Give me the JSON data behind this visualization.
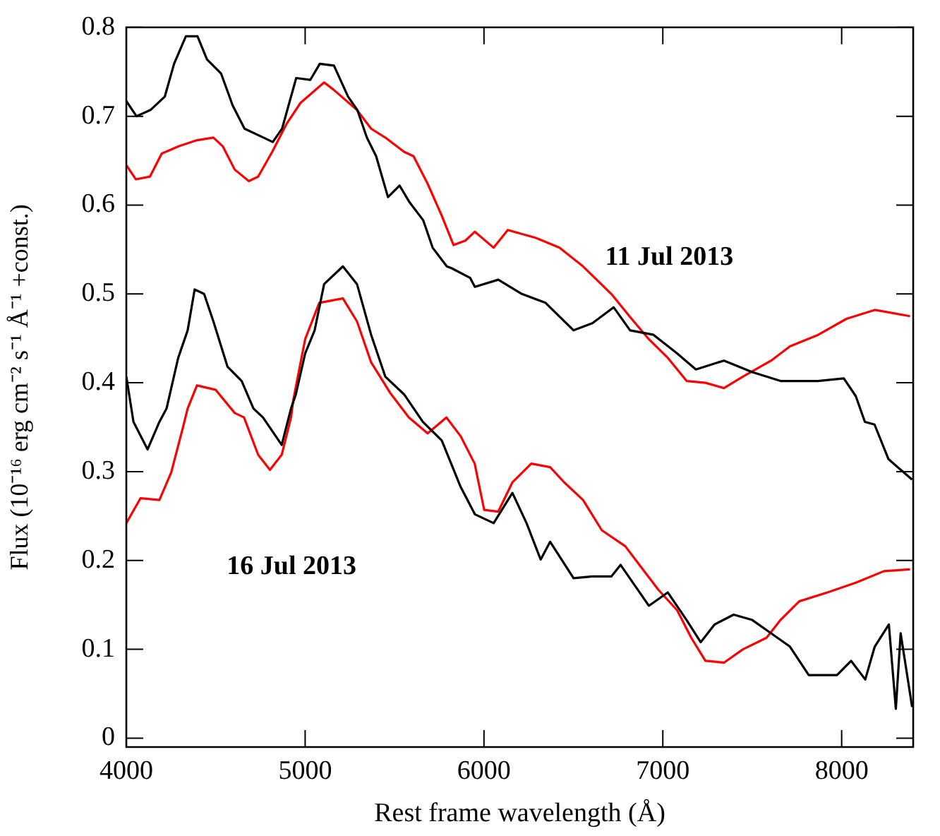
{
  "chart_data": {
    "type": "line",
    "xlabel": "Rest frame wavelength (Å)",
    "ylabel": "Flux (10⁻¹⁶ erg cm⁻² s⁻¹ Å⁻¹ +const.)",
    "xlim": [
      4000,
      8400
    ],
    "ylim": [
      -0.01,
      0.8
    ],
    "xticks": [
      4000,
      5000,
      6000,
      7000,
      8000
    ],
    "yticks": [
      0,
      0.1,
      0.2,
      0.3,
      0.4,
      0.5,
      0.6,
      0.7,
      0.8
    ],
    "grid": false,
    "legend": false,
    "marker": "none",
    "line_style": "solid",
    "series": [
      {
        "color": "#000000",
        "x": [
          4000,
          4057,
          4135,
          4215,
          4267,
          4333,
          4398,
          4451,
          4530,
          4595,
          4661,
          4767,
          4819,
          4871,
          4950,
          5029,
          5082,
          5161,
          5240,
          5292,
          5345,
          5397,
          5463,
          5528,
          5581,
          5660,
          5713,
          5792,
          5818,
          5923,
          5949,
          6080,
          6212,
          6344,
          6501,
          6606,
          6725,
          6817,
          6948,
          7080,
          7185,
          7342,
          7500,
          7658,
          7868,
          8012,
          8079,
          8130,
          8184,
          8262,
          8394
        ],
        "values": [
          0.717,
          0.7,
          0.707,
          0.722,
          0.759,
          0.79,
          0.79,
          0.764,
          0.748,
          0.712,
          0.686,
          0.676,
          0.671,
          0.686,
          0.743,
          0.741,
          0.759,
          0.757,
          0.722,
          0.707,
          0.676,
          0.655,
          0.609,
          0.622,
          0.604,
          0.583,
          0.552,
          0.531,
          0.529,
          0.518,
          0.508,
          0.516,
          0.5,
          0.49,
          0.459,
          0.467,
          0.485,
          0.459,
          0.454,
          0.433,
          0.415,
          0.425,
          0.412,
          0.402,
          0.402,
          0.405,
          0.385,
          0.356,
          0.353,
          0.314,
          0.291
        ]
      },
      {
        "color": "#ff0000",
        "x": [
          4000,
          4053,
          4132,
          4198,
          4290,
          4395,
          4487,
          4540,
          4606,
          4685,
          4737,
          4816,
          4895,
          4974,
          5106,
          5158,
          5290,
          5369,
          5448,
          5553,
          5606,
          5685,
          5764,
          5830,
          5896,
          5949,
          6054,
          6133,
          6291,
          6422,
          6554,
          6712,
          6817,
          6922,
          7028,
          7133,
          7238,
          7342,
          7448,
          7606,
          7711,
          7869,
          8027,
          8185,
          8382
        ],
        "values": [
          0.645,
          0.629,
          0.632,
          0.658,
          0.666,
          0.673,
          0.676,
          0.666,
          0.64,
          0.627,
          0.632,
          0.66,
          0.691,
          0.715,
          0.738,
          0.73,
          0.707,
          0.686,
          0.676,
          0.66,
          0.655,
          0.624,
          0.588,
          0.555,
          0.56,
          0.57,
          0.552,
          0.572,
          0.563,
          0.552,
          0.531,
          0.5,
          0.474,
          0.449,
          0.428,
          0.402,
          0.4,
          0.394,
          0.407,
          0.425,
          0.441,
          0.454,
          0.472,
          0.482,
          0.475
        ]
      },
      {
        "color": "#000000",
        "x": [
          4000,
          4040,
          4119,
          4185,
          4225,
          4290,
          4343,
          4382,
          4435,
          4487,
          4566,
          4645,
          4711,
          4764,
          4869,
          4921,
          4948,
          5000,
          5053,
          5106,
          5211,
          5290,
          5369,
          5448,
          5553,
          5658,
          5764,
          5869,
          5949,
          6054,
          6159,
          6238,
          6317,
          6370,
          6501,
          6606,
          6712,
          6764,
          6922,
          7028,
          7133,
          7212,
          7290,
          7396,
          7500,
          7606,
          7711,
          7816,
          7974,
          8053,
          8132,
          8185,
          8264,
          8303,
          8330,
          8394
        ],
        "values": [
          0.407,
          0.356,
          0.325,
          0.356,
          0.371,
          0.428,
          0.459,
          0.505,
          0.5,
          0.469,
          0.418,
          0.402,
          0.371,
          0.361,
          0.33,
          0.371,
          0.387,
          0.433,
          0.459,
          0.511,
          0.531,
          0.511,
          0.454,
          0.407,
          0.387,
          0.356,
          0.335,
          0.283,
          0.252,
          0.242,
          0.276,
          0.242,
          0.201,
          0.221,
          0.18,
          0.182,
          0.182,
          0.195,
          0.149,
          0.164,
          0.133,
          0.108,
          0.128,
          0.139,
          0.133,
          0.118,
          0.103,
          0.071,
          0.071,
          0.087,
          0.066,
          0.103,
          0.128,
          0.033,
          0.118,
          0.035
        ]
      },
      {
        "color": "#ff0000",
        "x": [
          4000,
          4079,
          4185,
          4251,
          4317,
          4343,
          4395,
          4500,
          4606,
          4658,
          4737,
          4803,
          4869,
          4921,
          4934,
          5000,
          5079,
          5211,
          5290,
          5369,
          5474,
          5580,
          5685,
          5790,
          5869,
          5948,
          6001,
          6080,
          6159,
          6264,
          6370,
          6448,
          6554,
          6659,
          6790,
          6869,
          6975,
          7080,
          7159,
          7238,
          7342,
          7448,
          7580,
          7658,
          7763,
          7921,
          8079,
          8237,
          8382
        ],
        "values": [
          0.242,
          0.27,
          0.268,
          0.299,
          0.35,
          0.371,
          0.397,
          0.392,
          0.366,
          0.361,
          0.319,
          0.302,
          0.319,
          0.361,
          0.381,
          0.449,
          0.49,
          0.495,
          0.469,
          0.423,
          0.389,
          0.361,
          0.343,
          0.361,
          0.34,
          0.309,
          0.257,
          0.255,
          0.288,
          0.309,
          0.305,
          0.288,
          0.268,
          0.234,
          0.216,
          0.195,
          0.167,
          0.144,
          0.113,
          0.087,
          0.085,
          0.1,
          0.113,
          0.133,
          0.154,
          0.164,
          0.175,
          0.188,
          0.19
        ]
      }
    ],
    "annotations": [
      "11 Jul 2013",
      "16 Jul 2013"
    ]
  }
}
